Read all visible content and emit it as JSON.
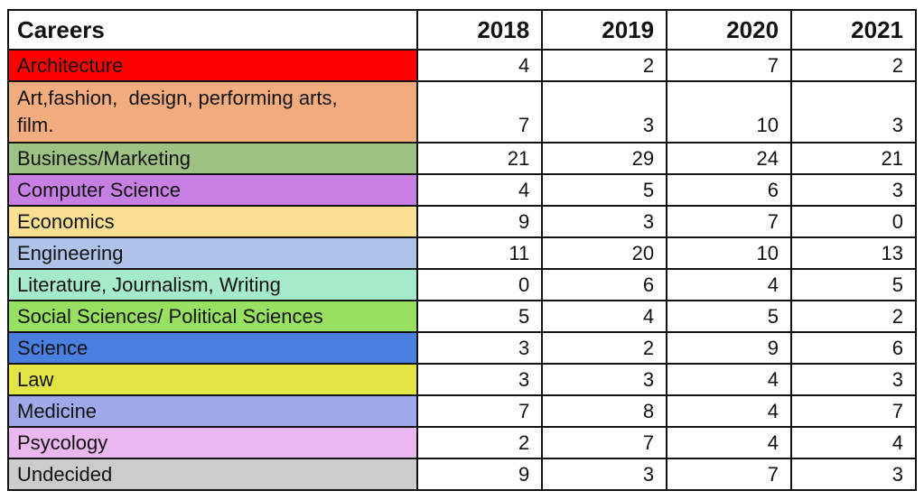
{
  "table": {
    "header": [
      "Careers",
      "2018",
      "2019",
      "2020",
      "2021"
    ],
    "rows": [
      {
        "label": "Architecture",
        "color": "#FF0000",
        "values": [
          4,
          2,
          7,
          2
        ]
      },
      {
        "label": "Art,fashion,  design, performing arts,\nfilm.",
        "color": "#F3AC7D",
        "values": [
          7,
          3,
          10,
          3
        ]
      },
      {
        "label": "Business/Marketing",
        "color": "#9DC284",
        "values": [
          21,
          29,
          24,
          21
        ]
      },
      {
        "label": "Computer Science",
        "color": "#C77FE3",
        "values": [
          4,
          5,
          6,
          3
        ]
      },
      {
        "label": "Economics",
        "color": "#FAE091",
        "values": [
          9,
          3,
          7,
          0
        ]
      },
      {
        "label": "Engineering",
        "color": "#AEC3E8",
        "values": [
          11,
          20,
          10,
          13
        ]
      },
      {
        "label": "Literature, Journalism, Writing",
        "color": "#A5EACB",
        "values": [
          0,
          6,
          4,
          5
        ]
      },
      {
        "label": "Social Sciences/ Political Sciences",
        "color": "#97E060",
        "values": [
          5,
          4,
          5,
          2
        ]
      },
      {
        "label": "Science",
        "color": "#4A7FE0",
        "values": [
          3,
          2,
          9,
          6
        ]
      },
      {
        "label": "Law",
        "color": "#E3E545",
        "values": [
          3,
          3,
          4,
          3
        ]
      },
      {
        "label": "Medicine",
        "color": "#9FA9E9",
        "values": [
          7,
          8,
          4,
          7
        ]
      },
      {
        "label": "Psycology",
        "color": "#EBB7EF",
        "values": [
          2,
          7,
          4,
          4
        ]
      },
      {
        "label": "Undecided",
        "color": "#CCCCCB",
        "values": [
          9,
          3,
          7,
          3
        ]
      }
    ]
  },
  "chart_data": {
    "type": "table",
    "title": "Careers by year",
    "categories": [
      "Architecture",
      "Art,fashion,  design, performing arts, film.",
      "Business/Marketing",
      "Computer Science",
      "Economics",
      "Engineering",
      "Literature, Journalism, Writing",
      "Social Sciences/ Political Sciences",
      "Science",
      "Law",
      "Medicine",
      "Psycology",
      "Undecided"
    ],
    "columns": [
      "2018",
      "2019",
      "2020",
      "2021"
    ],
    "series": [
      {
        "name": "2018",
        "values": [
          4,
          7,
          21,
          4,
          9,
          11,
          0,
          5,
          3,
          3,
          7,
          2,
          9
        ]
      },
      {
        "name": "2019",
        "values": [
          2,
          3,
          29,
          5,
          3,
          20,
          6,
          4,
          2,
          3,
          8,
          7,
          3
        ]
      },
      {
        "name": "2020",
        "values": [
          7,
          10,
          24,
          6,
          7,
          10,
          4,
          5,
          9,
          4,
          4,
          4,
          7
        ]
      },
      {
        "name": "2021",
        "values": [
          2,
          3,
          21,
          3,
          0,
          13,
          5,
          2,
          6,
          3,
          7,
          4,
          3
        ]
      }
    ],
    "row_colors": [
      "#FF0000",
      "#F3AC7D",
      "#9DC284",
      "#C77FE3",
      "#FAE091",
      "#AEC3E8",
      "#A5EACB",
      "#97E060",
      "#4A7FE0",
      "#E3E545",
      "#9FA9E9",
      "#EBB7EF",
      "#CCCCCB"
    ],
    "layout": {
      "header_bold": true,
      "values_align": "right",
      "grid": true,
      "border_color": "#121212"
    }
  }
}
